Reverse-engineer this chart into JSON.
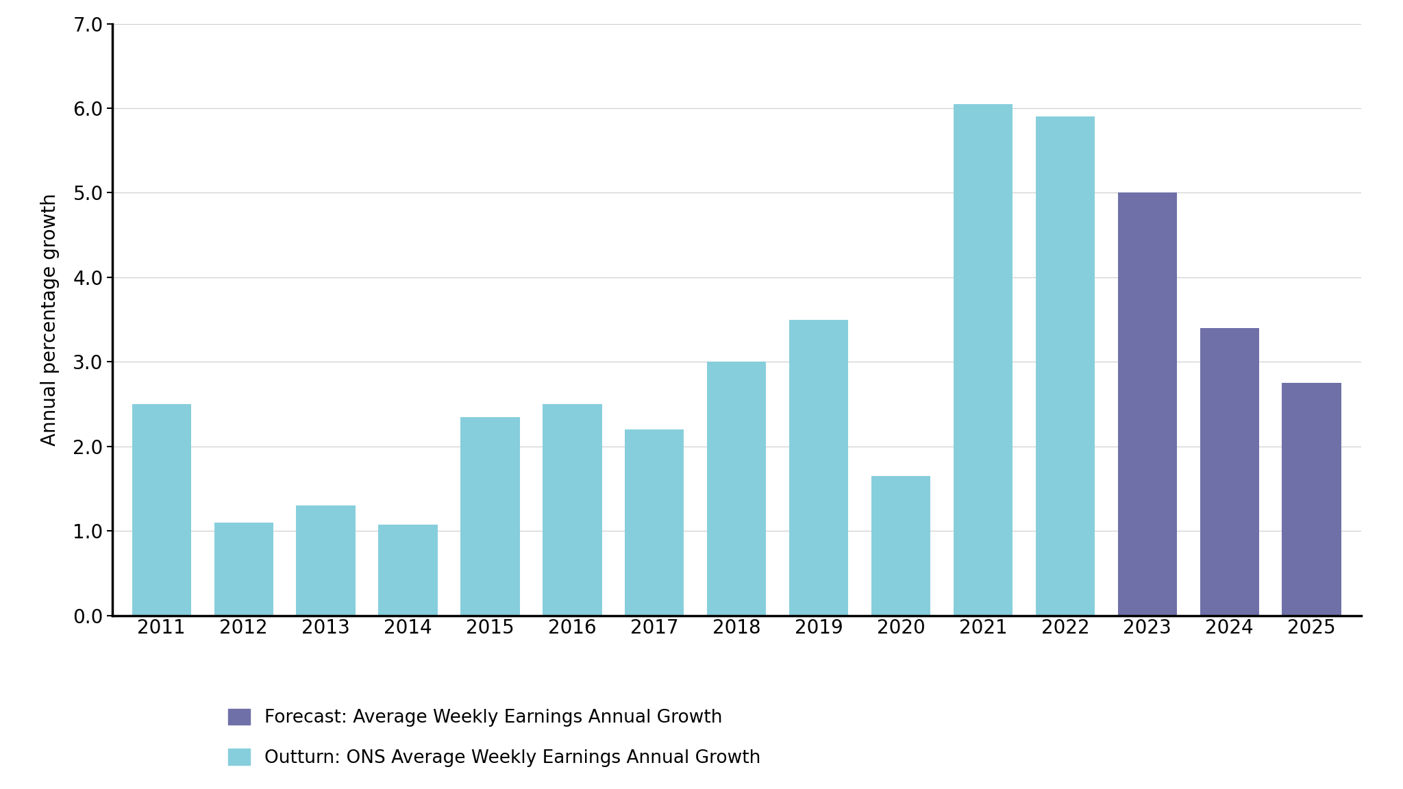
{
  "years": [
    2011,
    2012,
    2013,
    2014,
    2015,
    2016,
    2017,
    2018,
    2019,
    2020,
    2021,
    2022,
    2023,
    2024,
    2025
  ],
  "outturn_values": [
    2.5,
    1.1,
    1.3,
    1.07,
    2.35,
    2.5,
    2.2,
    3.0,
    3.5,
    1.65,
    6.05,
    5.9,
    null,
    null,
    null
  ],
  "forecast_values": [
    null,
    null,
    null,
    null,
    null,
    null,
    null,
    null,
    null,
    null,
    null,
    null,
    5.0,
    3.4,
    2.75
  ],
  "outturn_color": "#87cedc",
  "forecast_color": "#7070a8",
  "ylabel": "Annual percentage growth",
  "ylim": [
    0.0,
    7.0
  ],
  "yticks": [
    0.0,
    1.0,
    2.0,
    3.0,
    4.0,
    5.0,
    6.0,
    7.0
  ],
  "legend_forecast": "Forecast: Average Weekly Earnings Annual Growth",
  "legend_outturn": "Outturn: ONS Average Weekly Earnings Annual Growth",
  "background_color": "#ffffff",
  "bar_width": 0.72,
  "grid_color": "#d0d0d0"
}
